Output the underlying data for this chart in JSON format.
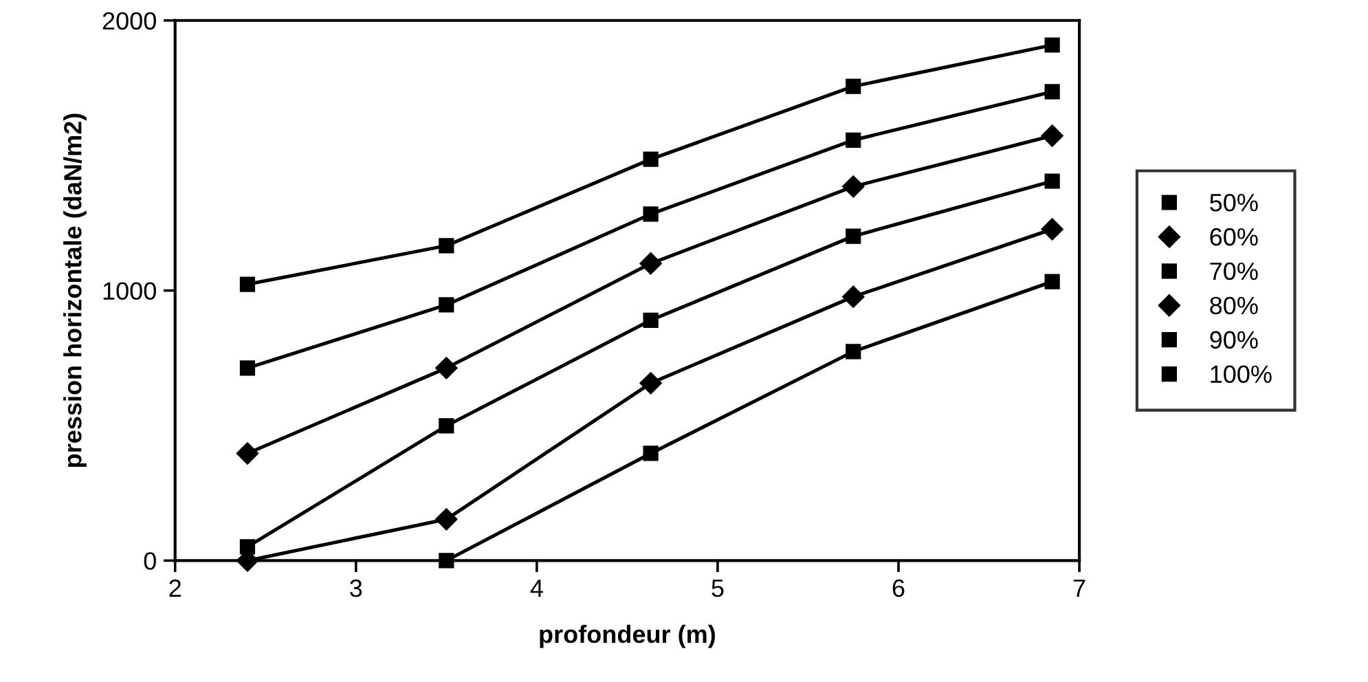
{
  "chart_data": {
    "type": "line",
    "xlabel": "profondeur (m)",
    "ylabel": "pression horizontale (daN/m2)",
    "xlim": [
      2,
      7
    ],
    "xticks": [
      2,
      3,
      4,
      5,
      6,
      7
    ],
    "ylim": [
      0,
      2000
    ],
    "yticks": [
      0,
      1000,
      2000
    ],
    "grid": false,
    "legend": "right",
    "line_style": "solid",
    "x": [
      2.4,
      3.5,
      4.63,
      5.75,
      6.85
    ],
    "series": [
      {
        "name": "50%",
        "color": "#000000",
        "marker": "square",
        "values": [
          null,
          0,
          397,
          774,
          1033
        ]
      },
      {
        "name": "60%",
        "color": "#000000",
        "marker": "diamond",
        "values": [
          0,
          153,
          657,
          977,
          1227
        ]
      },
      {
        "name": "70%",
        "color": "#000000",
        "marker": "square",
        "values": [
          51,
          499,
          890,
          1201,
          1405
        ]
      },
      {
        "name": "80%",
        "color": "#000000",
        "marker": "diamond",
        "values": [
          397,
          713,
          1100,
          1385,
          1573
        ]
      },
      {
        "name": "90%",
        "color": "#000000",
        "marker": "square",
        "values": [
          713,
          947,
          1283,
          1557,
          1736
        ]
      },
      {
        "name": "100%",
        "color": "#000000",
        "marker": "square",
        "values": [
          1023,
          1166,
          1486,
          1756,
          1909
        ]
      }
    ]
  }
}
